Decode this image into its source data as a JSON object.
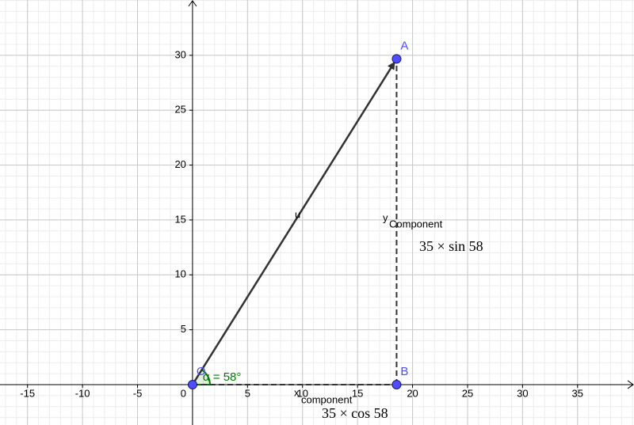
{
  "chart_data": {
    "type": "vector",
    "xlim": [
      -17.5,
      40.13
    ],
    "ylim": [
      -3.68,
      35.04
    ],
    "xticks": [
      -15,
      -10,
      -5,
      0,
      5,
      10,
      15,
      20,
      25,
      30,
      35
    ],
    "yticks": [
      5,
      10,
      15,
      20,
      25,
      30
    ],
    "grid": true,
    "minor_grid": 1,
    "points": [
      {
        "name": "O",
        "x": 0,
        "y": 0
      },
      {
        "name": "A",
        "x": 18.55,
        "y": 29.68
      },
      {
        "name": "B",
        "x": 18.55,
        "y": 0
      }
    ],
    "point_color": "#4d4dff",
    "vector_name": "u",
    "vector_color": "#333333",
    "angle": {
      "value": 58,
      "label": "α = 58°"
    },
    "angle_color": "#007d00",
    "y_component": {
      "main": "y",
      "sub": "Component",
      "formula": "35 × sin 58"
    },
    "x_component": {
      "main": "x",
      "sub": "component",
      "formula": "35 × cos 58"
    }
  }
}
